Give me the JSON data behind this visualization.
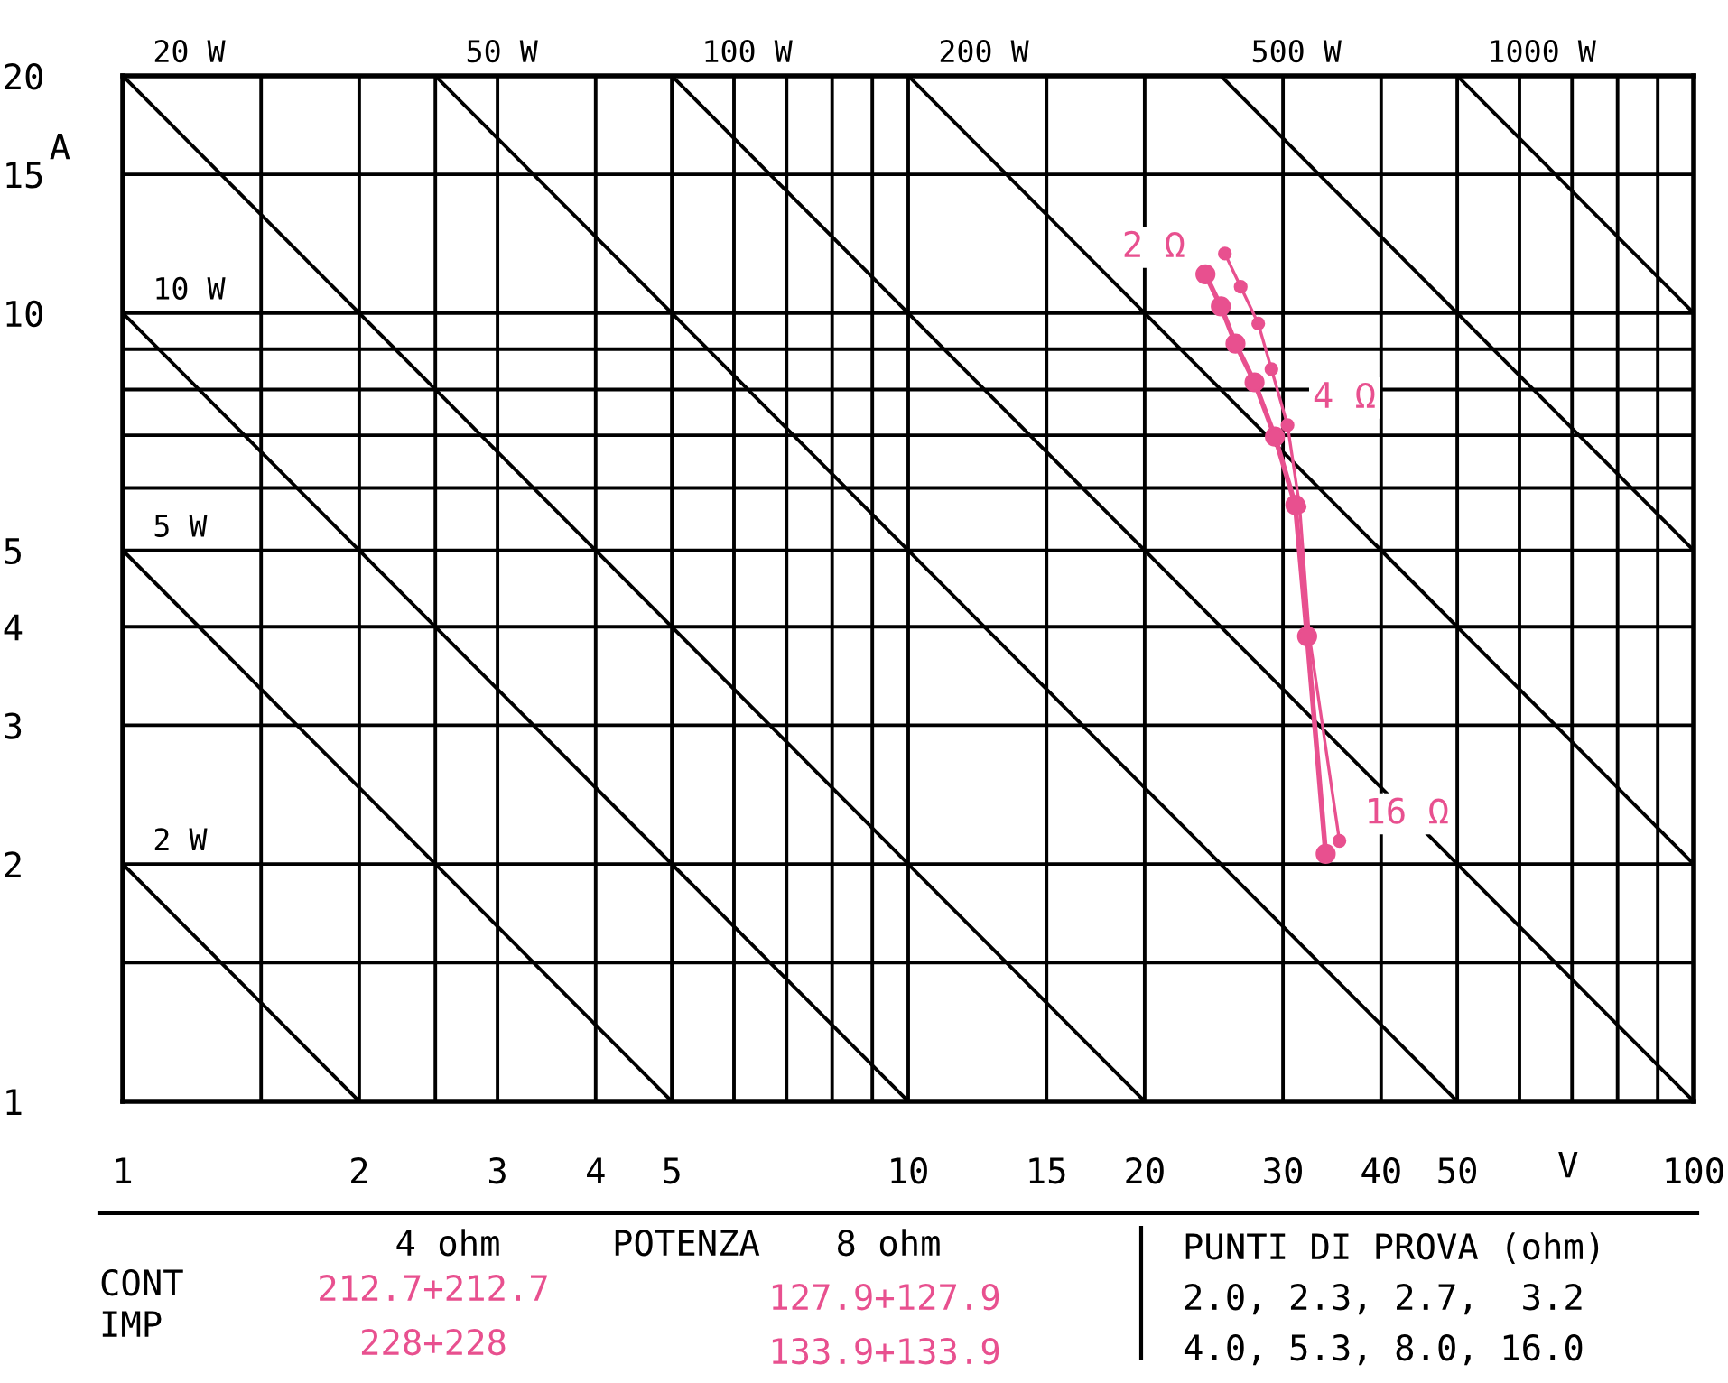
{
  "chart_data": {
    "type": "line",
    "xlabel": "V",
    "ylabel": "A",
    "log": "xy",
    "grid": true,
    "legend": false,
    "marker": "circle",
    "line_style": "solid",
    "xlim": [
      1,
      100
    ],
    "ylim": [
      1,
      20
    ],
    "xticks": [
      1,
      {
        "value": 1.5,
        "label": null
      },
      2,
      {
        "value": 2.5,
        "label": null
      },
      3,
      4,
      5,
      {
        "value": 6,
        "label": null
      },
      {
        "value": 7,
        "label": null
      },
      {
        "value": 8,
        "label": null
      },
      {
        "value": 9,
        "label": null
      },
      10,
      15,
      20,
      30,
      40,
      50,
      {
        "value": 60,
        "label": null
      },
      {
        "value": 70,
        "label": null
      },
      {
        "value": 80,
        "label": null
      },
      {
        "value": 90,
        "label": null
      },
      100
    ],
    "yticks": [
      1,
      {
        "value": 1.5,
        "label": null
      },
      2,
      3,
      4,
      5,
      {
        "value": 6,
        "label": null
      },
      {
        "value": 7,
        "label": null
      },
      {
        "value": 8,
        "label": null
      },
      {
        "value": 9,
        "label": null
      },
      10,
      15,
      20
    ],
    "series": [
      {
        "color": "#e8508f",
        "x": [
          23.9,
          25.0,
          26.1,
          27.6,
          29.3,
          31.1,
          32.2,
          34.0
        ],
        "values": [
          11.2,
          10.2,
          9.15,
          8.17,
          6.97,
          5.71,
          3.89,
          2.06
        ]
      },
      {
        "color": "#e8508f",
        "x": [
          25.3,
          26.5,
          27.9,
          29.0,
          30.4,
          31.5,
          32.4,
          35.4
        ],
        "values": [
          11.9,
          10.8,
          9.7,
          8.49,
          7.21,
          5.68,
          3.9,
          2.14
        ]
      },
      {
        "name": "2 W",
        "type": "line",
        "marker": "none",
        "color": "#000000",
        "x": [
          1,
          2
        ],
        "values": [
          2,
          1
        ]
      },
      {
        "name": "5 W",
        "type": "line",
        "marker": "none",
        "color": "#000000",
        "x": [
          1,
          5
        ],
        "values": [
          5,
          1
        ]
      },
      {
        "name": "10 W",
        "type": "line",
        "marker": "none",
        "color": "#000000",
        "x": [
          1,
          10
        ],
        "values": [
          10,
          1
        ]
      },
      {
        "name": "20 W",
        "type": "line",
        "marker": "none",
        "color": "#000000",
        "x": [
          1,
          20
        ],
        "values": [
          20,
          1
        ]
      },
      {
        "name": "50 W",
        "type": "line",
        "marker": "none",
        "color": "#000000",
        "x": [
          2.5,
          50
        ],
        "values": [
          20,
          1
        ]
      },
      {
        "name": "100 W",
        "type": "line",
        "marker": "none",
        "color": "#000000",
        "x": [
          5,
          100
        ],
        "values": [
          20,
          1
        ]
      },
      {
        "name": "200 W",
        "type": "line",
        "marker": "none",
        "color": "#000000",
        "x": [
          10,
          100
        ],
        "values": [
          20,
          2
        ]
      },
      {
        "name": "500 W",
        "type": "line",
        "marker": "none",
        "color": "#000000",
        "x": [
          25,
          100
        ],
        "values": [
          20,
          5
        ]
      },
      {
        "name": "1000 W",
        "type": "line",
        "marker": "none",
        "color": "#000000",
        "x": [
          50,
          100
        ],
        "values": [
          20,
          10
        ]
      }
    ],
    "annotations": [
      {
        "text": "2 Ω",
        "x": 23.9,
        "y": 11.2
      },
      {
        "text": "4 Ω",
        "x": 30.4,
        "y": 7.21
      },
      {
        "text": "16 Ω",
        "x": 35.4,
        "y": 2.14
      },
      "4 ohm",
      "POTENZA",
      "8 ohm",
      "CONT",
      "IMP",
      "212.7+212.7",
      "127.9+127.9",
      "228+228",
      "133.9+133.9",
      "PUNTI DI PROVA (ohm)",
      "2.0, 2.3, 2.7,  3.2",
      "4.0, 5.3, 8.0, 16.0"
    ]
  }
}
